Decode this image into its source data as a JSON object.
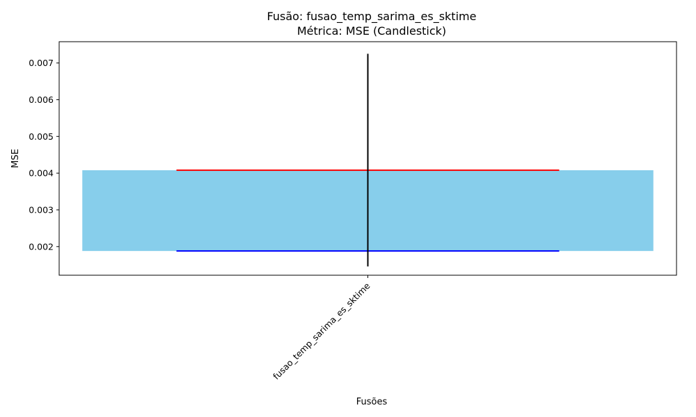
{
  "chart_data": {
    "type": "candlestick",
    "title_line1": "Fusão: fusao_temp_sarima_es_sktime",
    "title_line2": "Métrica: MSE (Candlestick)",
    "xlabel": "Fusões",
    "ylabel": "MSE",
    "categories": [
      "fusao_temp_sarima_es_sktime"
    ],
    "ylim": [
      0.00122,
      0.00758
    ],
    "yticks": [
      0.002,
      0.003,
      0.004,
      0.005,
      0.006,
      0.007
    ],
    "ytick_labels": [
      "0.002",
      "0.003",
      "0.004",
      "0.005",
      "0.006",
      "0.007"
    ],
    "candles": [
      {
        "category": "fusao_temp_sarima_es_sktime",
        "open": 0.00188,
        "close": 0.00408,
        "high": 0.00725,
        "low": 0.00146
      }
    ],
    "colors": {
      "body": "#87ceeb",
      "upper_line": "#ff0000",
      "lower_line": "#0000ff",
      "wick": "#000000"
    },
    "grid": false,
    "legend": "none"
  }
}
